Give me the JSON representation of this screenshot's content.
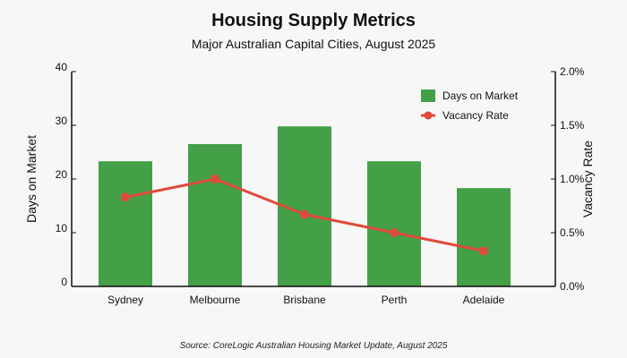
{
  "chart_data": {
    "type": "bar",
    "title": "Housing Supply Metrics",
    "subtitle": "Major Australian Capital Cities, August 2025",
    "categories": [
      "Sydney",
      "Melbourne",
      "Brisbane",
      "Perth",
      "Adelaide"
    ],
    "series": [
      {
        "name": "Days on Market",
        "type": "bar",
        "axis": "left",
        "color": "#43a047",
        "values": [
          23.3,
          26.5,
          29.8,
          23.3,
          18.3
        ]
      },
      {
        "name": "Vacancy Rate",
        "type": "line",
        "axis": "right",
        "color": "#e04a3a",
        "values": [
          0.83,
          1.0,
          0.67,
          0.5,
          0.33
        ]
      }
    ],
    "y_left": {
      "label": "Days on Market",
      "lim": [
        0,
        40
      ],
      "ticks": [
        "0",
        "10",
        "20",
        "30",
        "40"
      ],
      "tick_values": [
        0,
        10,
        20,
        30,
        40
      ]
    },
    "y_right": {
      "label": "Vacancy Rate",
      "lim": [
        0,
        2.0
      ],
      "unit": "%",
      "ticks": [
        "0.0%",
        "0.5%",
        "1.0%",
        "1.5%",
        "2.0%"
      ],
      "tick_values": [
        0,
        0.5,
        1.0,
        1.5,
        2.0
      ]
    },
    "legend": {
      "position": "top-right"
    },
    "grid": false,
    "source": "Source: CoreLogic Australian Housing Market Update, August 2025"
  }
}
